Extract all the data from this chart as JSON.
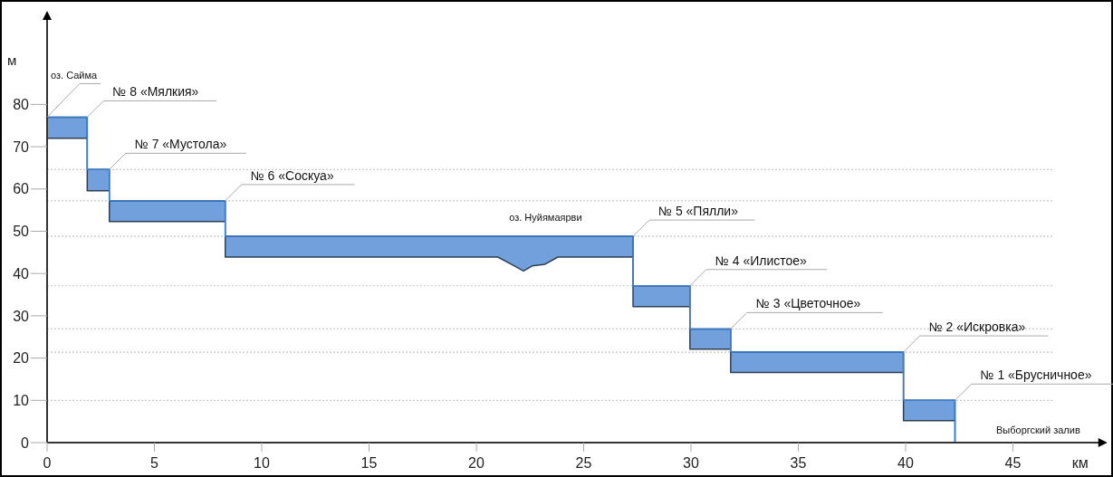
{
  "chart_data": {
    "type": "line",
    "xlabel": "км",
    "ylabel": "м",
    "xlim": [
      0,
      49.4
    ],
    "xticks": [
      0,
      5,
      10,
      15,
      20,
      25,
      30,
      35,
      40,
      45
    ],
    "ylim": [
      0,
      100
    ],
    "yticks": [
      0,
      10,
      20,
      30,
      40,
      50,
      60,
      70,
      80
    ],
    "grid": false,
    "series": [
      {
        "color": "#3a7fd0",
        "x": [
          0,
          1.87,
          1.87,
          2.9,
          2.9,
          8.3,
          8.3,
          21,
          21.7,
          22.2,
          22.6,
          23.2,
          23.8,
          27.3,
          27.3,
          29.95,
          29.95,
          31.85,
          31.85,
          39.9,
          39.9,
          42.3,
          42.3
        ],
        "values": [
          77,
          77,
          64.6,
          64.6,
          57.2,
          57.2,
          48.8,
          48.8,
          48.8,
          48.8,
          48.8,
          48.8,
          48.8,
          48.8,
          37.1,
          37.1,
          26.9,
          26.9,
          21.4,
          21.4,
          10,
          10,
          0
        ],
        "upper": [
          77,
          77,
          64.6,
          64.6,
          57.2,
          57.2,
          48.8,
          48.8,
          48.8,
          48.8,
          48.8,
          48.8,
          48.8,
          48.8,
          37.1,
          37.1,
          26.9,
          26.9,
          21.4,
          21.4,
          10,
          10,
          0
        ],
        "lower": [
          72,
          72,
          59.6,
          59.6,
          52.3,
          52.3,
          43.9,
          43.9,
          42,
          40.6,
          41.8,
          42.2,
          43.9,
          43.9,
          32.2,
          32.2,
          22.1,
          22.1,
          16.6,
          16.6,
          5.2,
          5.2,
          0
        ]
      }
    ],
    "ref_lines": [
      {
        "axis": "y",
        "value": 64.6,
        "color": "#c8c8c8",
        "line_style": "dotted"
      },
      {
        "axis": "y",
        "value": 57.2,
        "color": "#c8c8c8",
        "line_style": "dotted"
      },
      {
        "axis": "y",
        "value": 48.8,
        "color": "#c8c8c8",
        "line_style": "dotted"
      },
      {
        "axis": "y",
        "value": 37.1,
        "color": "#c8c8c8",
        "line_style": "dotted"
      },
      {
        "axis": "y",
        "value": 26.9,
        "color": "#c8c8c8",
        "line_style": "dotted"
      },
      {
        "axis": "y",
        "value": 21.4,
        "color": "#c8c8c8",
        "line_style": "dotted"
      },
      {
        "axis": "y",
        "value": 10,
        "color": "#c8c8c8",
        "line_style": "dotted"
      }
    ],
    "annotations": [
      {
        "text": "оз. Сайма",
        "x": 0,
        "y": 77
      },
      {
        "text": "№ 8 «Мялкия»",
        "x": 1.87,
        "y": 77
      },
      {
        "text": "№ 7 «Мустола»",
        "x": 2.9,
        "y": 64.6
      },
      {
        "text": "№ 6 «Соскуа»",
        "x": 8.3,
        "y": 57.2
      },
      {
        "text": "№ 5 «Пялли»",
        "x": 27.3,
        "y": 48.8
      },
      {
        "text": "№ 4 «Илистое»",
        "x": 29.95,
        "y": 37.1
      },
      {
        "text": "№ 3 «Цветочное»",
        "x": 31.85,
        "y": 26.9
      },
      {
        "text": "№ 2 «Искровка»",
        "x": 39.9,
        "y": 21.4
      },
      {
        "text": "№ 1 «Брусничное»",
        "x": 42.3,
        "y": 10
      },
      "оз. Нуйямаярви",
      "Выборгский залив"
    ]
  }
}
